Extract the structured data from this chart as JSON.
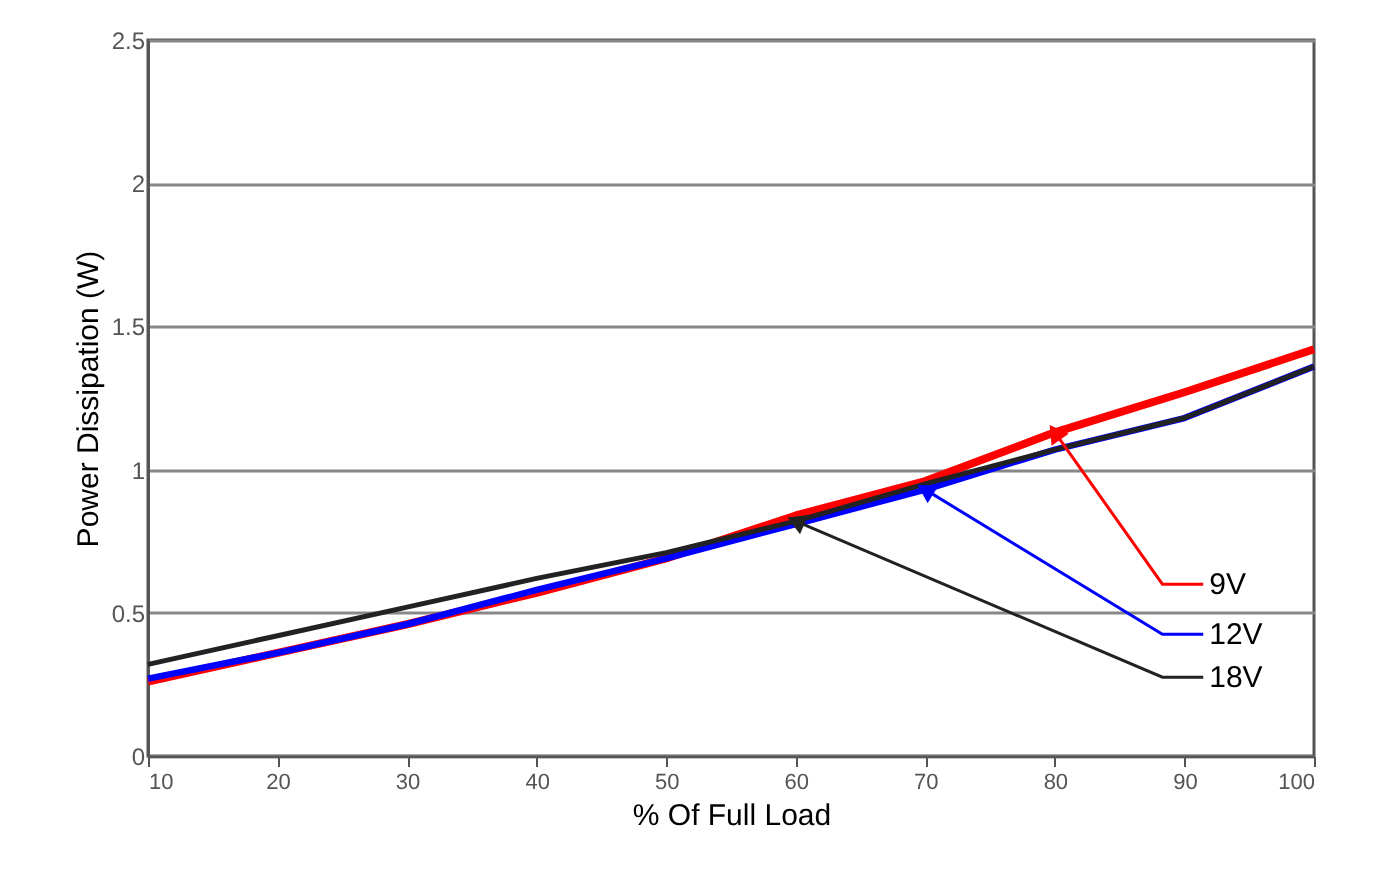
{
  "chart_data": {
    "type": "line",
    "xlabel": "% Of Full Load",
    "ylabel": "Power Dissipation (W)",
    "x": [
      10,
      20,
      30,
      40,
      50,
      60,
      70,
      80,
      90,
      100
    ],
    "series": [
      {
        "name": "9V",
        "color": "#ff0000",
        "values": [
          0.26,
          0.36,
          0.46,
          0.57,
          0.69,
          0.84,
          0.96,
          1.13,
          1.27,
          1.42
        ]
      },
      {
        "name": "12V",
        "color": "#0000ff",
        "values": [
          0.27,
          0.36,
          0.46,
          0.58,
          0.69,
          0.81,
          0.93,
          1.07,
          1.18,
          1.36
        ]
      },
      {
        "name": "18V",
        "color": "#222222",
        "values": [
          0.32,
          0.42,
          0.52,
          0.62,
          0.71,
          0.82,
          0.95,
          1.07,
          1.18,
          1.36
        ]
      }
    ],
    "xlim": [
      10,
      100
    ],
    "xticks": [
      10,
      20,
      30,
      40,
      50,
      60,
      70,
      80,
      90,
      100
    ],
    "ylim": [
      0,
      2.5
    ],
    "yticks": [
      0,
      0.5,
      1,
      1.5,
      2,
      2.5
    ],
    "grid": "y",
    "marker": "none",
    "line_style": "solid"
  }
}
